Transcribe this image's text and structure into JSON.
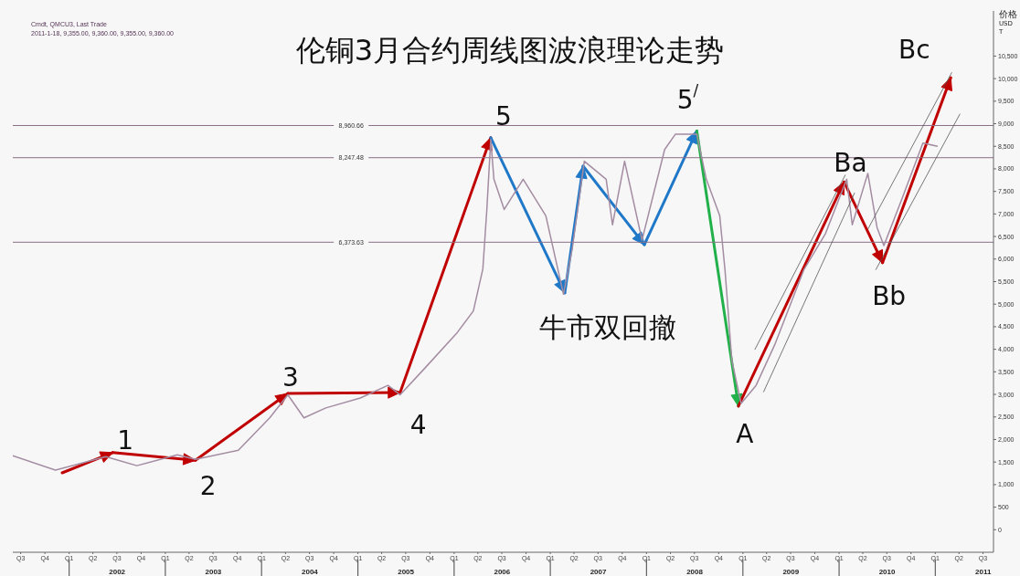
{
  "chart_data": {
    "type": "line",
    "title": "伦铜3月合约周线图波浪理论走势",
    "ylabel": "价格 USD T",
    "xlim": [
      "2001-06-01",
      "2011-08-10"
    ],
    "xticks": [
      {
        "value": "2001-07-01",
        "label": "Q3"
      },
      {
        "value": "2001-10-01",
        "label": "Q4"
      },
      {
        "value": "2002-01-01",
        "label": "Q1"
      },
      {
        "value": "2002-04-01",
        "label": "Q2"
      },
      {
        "value": "2002-07-01",
        "label": "Q3"
      },
      {
        "value": "2002-10-01",
        "label": "Q4"
      },
      {
        "value": "2003-01-01",
        "label": "Q1"
      },
      {
        "value": "2003-04-01",
        "label": "Q2"
      },
      {
        "value": "2003-07-01",
        "label": "Q3"
      },
      {
        "value": "2003-10-01",
        "label": "Q4"
      },
      {
        "value": "2004-01-01",
        "label": "Q1"
      },
      {
        "value": "2004-04-01",
        "label": "Q2"
      },
      {
        "value": "2004-07-01",
        "label": "Q3"
      },
      {
        "value": "2004-10-01",
        "label": "Q4"
      },
      {
        "value": "2005-01-01",
        "label": "Q1"
      },
      {
        "value": "2005-04-01",
        "label": "Q2"
      },
      {
        "value": "2005-07-01",
        "label": "Q3"
      },
      {
        "value": "2005-10-01",
        "label": "Q4"
      },
      {
        "value": "2006-01-01",
        "label": "Q1"
      },
      {
        "value": "2006-04-01",
        "label": "Q2"
      },
      {
        "value": "2006-07-01",
        "label": "Q3"
      },
      {
        "value": "2006-10-01",
        "label": "Q4"
      },
      {
        "value": "2007-01-01",
        "label": "Q1"
      },
      {
        "value": "2007-04-01",
        "label": "Q2"
      },
      {
        "value": "2007-07-01",
        "label": "Q3"
      },
      {
        "value": "2007-10-01",
        "label": "Q4"
      },
      {
        "value": "2008-01-01",
        "label": "Q1"
      },
      {
        "value": "2008-04-01",
        "label": "Q2"
      },
      {
        "value": "2008-07-01",
        "label": "Q3"
      },
      {
        "value": "2008-10-01",
        "label": "Q4"
      },
      {
        "value": "2009-01-01",
        "label": "Q1"
      },
      {
        "value": "2009-04-01",
        "label": "Q2"
      },
      {
        "value": "2009-07-01",
        "label": "Q3"
      },
      {
        "value": "2009-10-01",
        "label": "Q4"
      },
      {
        "value": "2010-01-01",
        "label": "Q1"
      },
      {
        "value": "2010-04-01",
        "label": "Q2"
      },
      {
        "value": "2010-07-01",
        "label": "Q3"
      },
      {
        "value": "2010-10-01",
        "label": "Q4"
      },
      {
        "value": "2011-01-01",
        "label": "Q1"
      },
      {
        "value": "2011-04-01",
        "label": "Q2"
      },
      {
        "value": "2011-07-01",
        "label": "Q3"
      }
    ],
    "x2lim": [
      "2001-06-01",
      "2011-08-10"
    ],
    "x2ticks": [
      {
        "value": "2002-01-01",
        "label": null
      },
      {
        "value": "2002-07-02",
        "label": "2002"
      },
      {
        "value": "2003-01-01",
        "label": null
      },
      {
        "value": "2003-07-02",
        "label": "2003"
      },
      {
        "value": "2004-01-01",
        "label": null
      },
      {
        "value": "2004-07-02",
        "label": "2004"
      },
      {
        "value": "2005-01-01",
        "label": null
      },
      {
        "value": "2005-07-02",
        "label": "2005"
      },
      {
        "value": "2006-01-01",
        "label": null
      },
      {
        "value": "2006-07-02",
        "label": "2006"
      },
      {
        "value": "2007-01-01",
        "label": null
      },
      {
        "value": "2007-07-02",
        "label": "2007"
      },
      {
        "value": "2008-01-01",
        "label": null
      },
      {
        "value": "2008-07-02",
        "label": "2008"
      },
      {
        "value": "2009-01-01",
        "label": null
      },
      {
        "value": "2009-07-02",
        "label": "2009"
      },
      {
        "value": "2010-01-01",
        "label": null
      },
      {
        "value": "2010-07-02",
        "label": "2010"
      },
      {
        "value": "2011-01-01",
        "label": null
      },
      {
        "value": "2011-07-02",
        "label": "2011"
      }
    ],
    "ylim": [
      -500,
      11500
    ],
    "yticks": [
      0,
      500,
      {
        "value": 1000,
        "label": "1,000"
      },
      {
        "value": 1500,
        "label": "1,500"
      },
      {
        "value": 2000,
        "label": "2,000"
      },
      {
        "value": 2500,
        "label": "2,500"
      },
      {
        "value": 3000,
        "label": "3,000"
      },
      {
        "value": 3500,
        "label": "3,500"
      },
      {
        "value": 4000,
        "label": "4,000"
      },
      {
        "value": 4500,
        "label": "4,500"
      },
      {
        "value": 5000,
        "label": "5,000"
      },
      {
        "value": 5500,
        "label": "5,500"
      },
      {
        "value": 6000,
        "label": "6,000"
      },
      {
        "value": 6500,
        "label": "6,500"
      },
      {
        "value": 7000,
        "label": "7,000"
      },
      {
        "value": 7500,
        "label": "7,500"
      },
      {
        "value": 8000,
        "label": "8,000"
      },
      {
        "value": 8500,
        "label": "8,500"
      },
      {
        "value": 9000,
        "label": "9,000"
      },
      {
        "value": 9500,
        "label": "9,500"
      },
      {
        "value": 10000,
        "label": "10,000"
      },
      {
        "value": 10500,
        "label": "10,500"
      }
    ],
    "series": [
      {
        "type": "line",
        "color": "#a48ca2",
        "x": [
          "2001-06-01",
          "2001-11-10",
          "2002-05-20",
          "2002-09-15",
          "2003-02-15",
          "2003-04-25",
          "2003-10-05",
          "2004-02-01",
          "2004-04-10",
          "2004-06-10",
          "2004-09-01",
          "2005-01-10",
          "2005-04-25",
          "2005-06-10",
          "2005-09-10",
          "2006-01-10",
          "2006-03-15",
          "2006-04-20",
          "2006-05-05",
          "2006-05-20",
          "2006-06-01",
          "2006-07-10",
          "2006-09-20",
          "2006-12-15",
          "2007-02-20",
          "2007-03-25",
          "2007-05-10",
          "2007-08-01",
          "2007-08-25",
          "2007-10-10",
          "2007-12-15",
          "2008-03-10",
          "2008-04-20",
          "2008-07-10",
          "2008-08-15",
          "2008-10-05",
          "2008-10-25",
          "2008-11-20",
          "2008-12-25",
          "2009-02-20",
          "2009-05-01",
          "2009-08-20",
          "2009-11-10",
          "2010-01-30",
          "2010-02-20",
          "2010-04-20",
          "2010-05-25",
          "2010-06-20",
          "2010-08-30",
          "2010-11-15",
          "2011-01-10"
        ],
        "values": [
          1640,
          1320,
          1620,
          1420,
          1660,
          1560,
          1760,
          2480,
          2990,
          2480,
          2700,
          2920,
          3200,
          2990,
          3570,
          4350,
          4850,
          5780,
          7090,
          8650,
          7770,
          7100,
          7770,
          6960,
          5220,
          6220,
          8170,
          7770,
          6760,
          8170,
          6420,
          8430,
          8770,
          8770,
          7770,
          6960,
          5760,
          3750,
          2800,
          3200,
          4090,
          5760,
          6560,
          7770,
          6760,
          7900,
          6700,
          6300,
          7370,
          8570,
          8500
        ]
      },
      {
        "type": "line",
        "color": "#555555",
        "x": [
          "2009-02-15",
          "2010-01-25"
        ],
        "values": [
          3990,
          7870
        ]
      },
      {
        "type": "line",
        "color": "#555555",
        "x": [
          "2009-03-20",
          "2010-03-01"
        ],
        "values": [
          3050,
          7470
        ]
      },
      {
        "type": "line",
        "color": "#555555",
        "x": [
          "2010-04-20",
          "2011-03-05"
        ],
        "values": [
          6660,
          10140
        ]
      },
      {
        "type": "line",
        "color": "#555555",
        "x": [
          "2010-05-20",
          "2011-04-05"
        ],
        "values": [
          5760,
          9220
        ]
      }
    ],
    "ref_lines": [
      {
        "axis": "y",
        "value": 8960.66,
        "label": "8,960.66",
        "color": "#8a6f86"
      },
      {
        "axis": "y",
        "value": 8247.48,
        "label": "8,247.48",
        "color": "#8a6f86"
      },
      {
        "axis": "y",
        "value": 6373.63,
        "label": "6,373.63",
        "color": "#8a6f86"
      }
    ],
    "annotations": [
      "Cmdt, QMCU3, Last Trade",
      "2011-1-18, 9,355.00, 9,360.00, 9,355.00, 9,360.00",
      {
        "text": "1",
        "x": "2002-06-15",
        "y": 1710
      },
      {
        "text": "2",
        "x": "2003-04-25",
        "y": 1540
      },
      {
        "text": "3",
        "x": "2004-04-10",
        "y": 3020
      },
      {
        "text": "4",
        "x": "2005-06-10",
        "y": 3040
      },
      {
        "text": "5",
        "x": "2006-05-20",
        "y": 8690
      },
      {
        "text": "5$^{/}$",
        "x": "2008-07-10",
        "y": 8840
      },
      {
        "text": "A",
        "x": "2008-12-15",
        "y": 2740
      },
      {
        "text": "Ba",
        "x": "2010-01-20",
        "y": 7710
      },
      {
        "text": "Bb",
        "x": "2010-06-15",
        "y": 5920
      },
      {
        "text": "Bc",
        "x": "2011-03-01",
        "y": 10020
      },
      {
        "text": "牛市双回撤",
        "x": "2007-02-25",
        "y": 5250
      }
    ]
  }
}
